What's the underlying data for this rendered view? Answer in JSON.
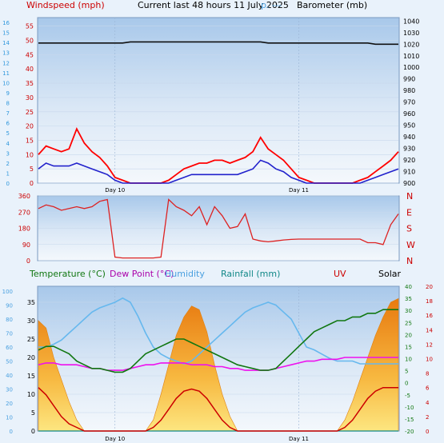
{
  "header": {
    "windspeed_label": "Windspeed (mph)",
    "title": "Current last 48 hours 11 July 2025",
    "overlap_text": "p. ---",
    "barometer_label": "Barometer (mb)"
  },
  "legend_bottom": {
    "temperature": "Temperature (°C)",
    "dew_point": "Dew Point (°C)",
    "humidity": "Humidity",
    "rainfall": "Rainfall (mm)",
    "uv": "UV",
    "solar": "Solar"
  },
  "colors": {
    "wind_gust": "#ff0000",
    "wind_avg": "#2222cc",
    "barometer": "#111111",
    "wind_dir": "#dd2222",
    "temperature": "#117711",
    "dew_point": "#ee11ee",
    "humidity": "#66b8ee",
    "rainfall": "#118888",
    "uv": "#cc0000",
    "solar": "#f0a020",
    "left_axis_blue": "#3399dd",
    "right_axis_red": "#cc0000"
  },
  "chart_data": [
    {
      "type": "line",
      "panel": "wind-barometer",
      "x_labels": [
        "Day 10",
        "Day 11"
      ],
      "y_left_ticks": [
        0,
        5,
        10,
        15,
        20,
        25,
        30,
        35,
        40,
        45,
        50,
        55
      ],
      "y_left_blue_ticks": [
        0,
        1,
        2,
        3,
        4,
        5,
        6,
        7,
        8,
        9,
        10,
        11,
        12,
        13,
        14,
        15,
        16
      ],
      "y_right_ticks": [
        900,
        910,
        920,
        930,
        940,
        950,
        960,
        970,
        980,
        990,
        1000,
        1010,
        1020,
        1030,
        1040
      ],
      "ylim_left": [
        0,
        58
      ],
      "ylim_right": [
        900,
        1043
      ],
      "hours": 48,
      "series": [
        {
          "name": "Gust (mph)",
          "color": "#ff0000",
          "values": [
            10,
            13,
            12,
            11,
            12,
            19,
            14,
            11,
            9,
            6,
            2,
            1,
            0,
            0,
            0,
            0,
            0,
            1,
            3,
            5,
            6,
            7,
            7,
            8,
            8,
            7,
            8,
            9,
            11,
            16,
            12,
            10,
            8,
            5,
            2,
            1,
            0,
            0,
            0,
            0,
            0,
            0,
            1,
            2,
            4,
            6,
            8,
            11
          ]
        },
        {
          "name": "Average (mph)",
          "color": "#2222cc",
          "values": [
            5,
            7,
            6,
            6,
            6,
            7,
            6,
            5,
            4,
            3,
            1,
            0,
            0,
            0,
            0,
            0,
            0,
            0,
            1,
            2,
            3,
            3,
            3,
            3,
            3,
            3,
            3,
            4,
            5,
            8,
            7,
            5,
            4,
            2,
            1,
            0,
            0,
            0,
            0,
            0,
            0,
            0,
            0,
            1,
            2,
            3,
            4,
            5
          ]
        },
        {
          "name": "Barometer (mb)",
          "color": "#111111",
          "values": [
            1021,
            1021,
            1021,
            1021,
            1021,
            1021,
            1021,
            1021,
            1021,
            1021,
            1021,
            1021,
            1022,
            1022,
            1022,
            1022,
            1022,
            1022,
            1022,
            1022,
            1022,
            1022,
            1022,
            1022,
            1022,
            1022,
            1022,
            1022,
            1022,
            1022,
            1021,
            1021,
            1021,
            1021,
            1021,
            1021,
            1021,
            1021,
            1021,
            1021,
            1021,
            1021,
            1021,
            1021,
            1020,
            1020,
            1020,
            1020
          ]
        }
      ]
    },
    {
      "type": "line",
      "panel": "wind-direction",
      "y_ticks": [
        0,
        90,
        180,
        270,
        360
      ],
      "y_right_labels": [
        "N",
        "W",
        "S",
        "E",
        "N"
      ],
      "ylim": [
        0,
        360
      ],
      "hours": 48,
      "series": [
        {
          "name": "Direction (deg)",
          "color": "#dd2222",
          "values": [
            290,
            310,
            300,
            280,
            290,
            300,
            290,
            300,
            330,
            340,
            20,
            15,
            15,
            15,
            15,
            15,
            20,
            340,
            300,
            280,
            250,
            300,
            200,
            300,
            250,
            180,
            190,
            260,
            120,
            110,
            105,
            110,
            115,
            118,
            120,
            120,
            120,
            120,
            120,
            120,
            120,
            120,
            120,
            100,
            100,
            90,
            200,
            260
          ]
        }
      ]
    },
    {
      "type": "line",
      "panel": "temperature-humidity-rain-uv-solar",
      "x_labels": [
        "Day 10",
        "Day 11"
      ],
      "y_left_humidity_ticks": [
        0,
        10,
        20,
        30,
        40,
        50,
        60,
        70,
        80,
        90,
        100
      ],
      "y_left_black_ticks": [
        0,
        5,
        10,
        15,
        20,
        25,
        30,
        35
      ],
      "y_right_green_ticks": [
        -20,
        -15,
        -10,
        -5,
        0,
        5,
        10,
        15,
        20,
        25,
        30,
        35,
        40
      ],
      "y_right_red_ticks": [
        0,
        2,
        4,
        6,
        8,
        10,
        12,
        14,
        16,
        18,
        20
      ],
      "hours": 48,
      "series": [
        {
          "name": "Temperature (°C)",
          "color": "#117711",
          "values": [
            22,
            23,
            23,
            22,
            21,
            19,
            18,
            17,
            17,
            16.5,
            16,
            16,
            17,
            19,
            21,
            22,
            23,
            24,
            25,
            25,
            24,
            23,
            22,
            21,
            20,
            19,
            18,
            17.5,
            17,
            16.5,
            16.5,
            17,
            19,
            21,
            23,
            25,
            27,
            28,
            29,
            30,
            30,
            31,
            31,
            32,
            32,
            33,
            33,
            33
          ]
        },
        {
          "name": "Dew Point (°C)",
          "color": "#ee11ee",
          "values": [
            18,
            18.5,
            18.5,
            18,
            18,
            18,
            17.5,
            17,
            17,
            16.5,
            16.5,
            16.5,
            17,
            17.5,
            18,
            18,
            18.5,
            18.5,
            18.5,
            18.5,
            18,
            18,
            18,
            17.5,
            17.5,
            17,
            17,
            16.5,
            16.5,
            16.5,
            16.5,
            17,
            17.5,
            18,
            18.5,
            19,
            19,
            19.5,
            19.5,
            19.5,
            20,
            20,
            20,
            20,
            20,
            20,
            20,
            20
          ]
        },
        {
          "name": "Humidity",
          "color": "#66b8ee",
          "values": [
            60,
            60,
            62,
            65,
            70,
            75,
            80,
            85,
            88,
            90,
            92,
            95,
            92,
            82,
            70,
            60,
            55,
            52,
            50,
            48,
            50,
            55,
            60,
            65,
            70,
            75,
            80,
            85,
            88,
            90,
            92,
            90,
            85,
            80,
            70,
            60,
            58,
            55,
            52,
            50,
            50,
            50,
            48,
            48,
            48,
            48,
            48,
            48
          ]
        },
        {
          "name": "Rainfall (mm)",
          "color": "#118888",
          "values": [
            0,
            0,
            0,
            0,
            0,
            0,
            0,
            0,
            0,
            0,
            0,
            0,
            0,
            0,
            0,
            0,
            0,
            0,
            0,
            0,
            0,
            0,
            0,
            0,
            0,
            0,
            0,
            0,
            0,
            0,
            0,
            0,
            0,
            0,
            0,
            0,
            0,
            0,
            0,
            0,
            0,
            0,
            0,
            0,
            0,
            0,
            0,
            0
          ]
        },
        {
          "name": "UV",
          "color": "#cc0000",
          "values": [
            6,
            5,
            3.5,
            2,
            1,
            0.5,
            0,
            0,
            0,
            0,
            0,
            0,
            0,
            0,
            0,
            0.5,
            1.5,
            3,
            4.5,
            5.5,
            5.8,
            5.5,
            4.5,
            3,
            1.5,
            0.5,
            0,
            0,
            0,
            0,
            0,
            0,
            0,
            0,
            0,
            0,
            0,
            0,
            0,
            0,
            0.5,
            1.5,
            3,
            4.5,
            5.5,
            6,
            6,
            6
          ]
        },
        {
          "name": "Solar",
          "color": "#f0a020",
          "values": [
            30,
            28,
            20,
            14,
            8,
            3,
            0,
            0,
            0,
            0,
            0,
            0,
            0,
            0,
            0,
            3,
            10,
            18,
            26,
            31,
            34,
            33,
            27,
            18,
            10,
            4,
            0,
            0,
            0,
            0,
            0,
            0,
            0,
            0,
            0,
            0,
            0,
            0,
            0,
            0,
            3,
            8,
            14,
            20,
            26,
            31,
            35,
            36
          ]
        }
      ]
    }
  ]
}
